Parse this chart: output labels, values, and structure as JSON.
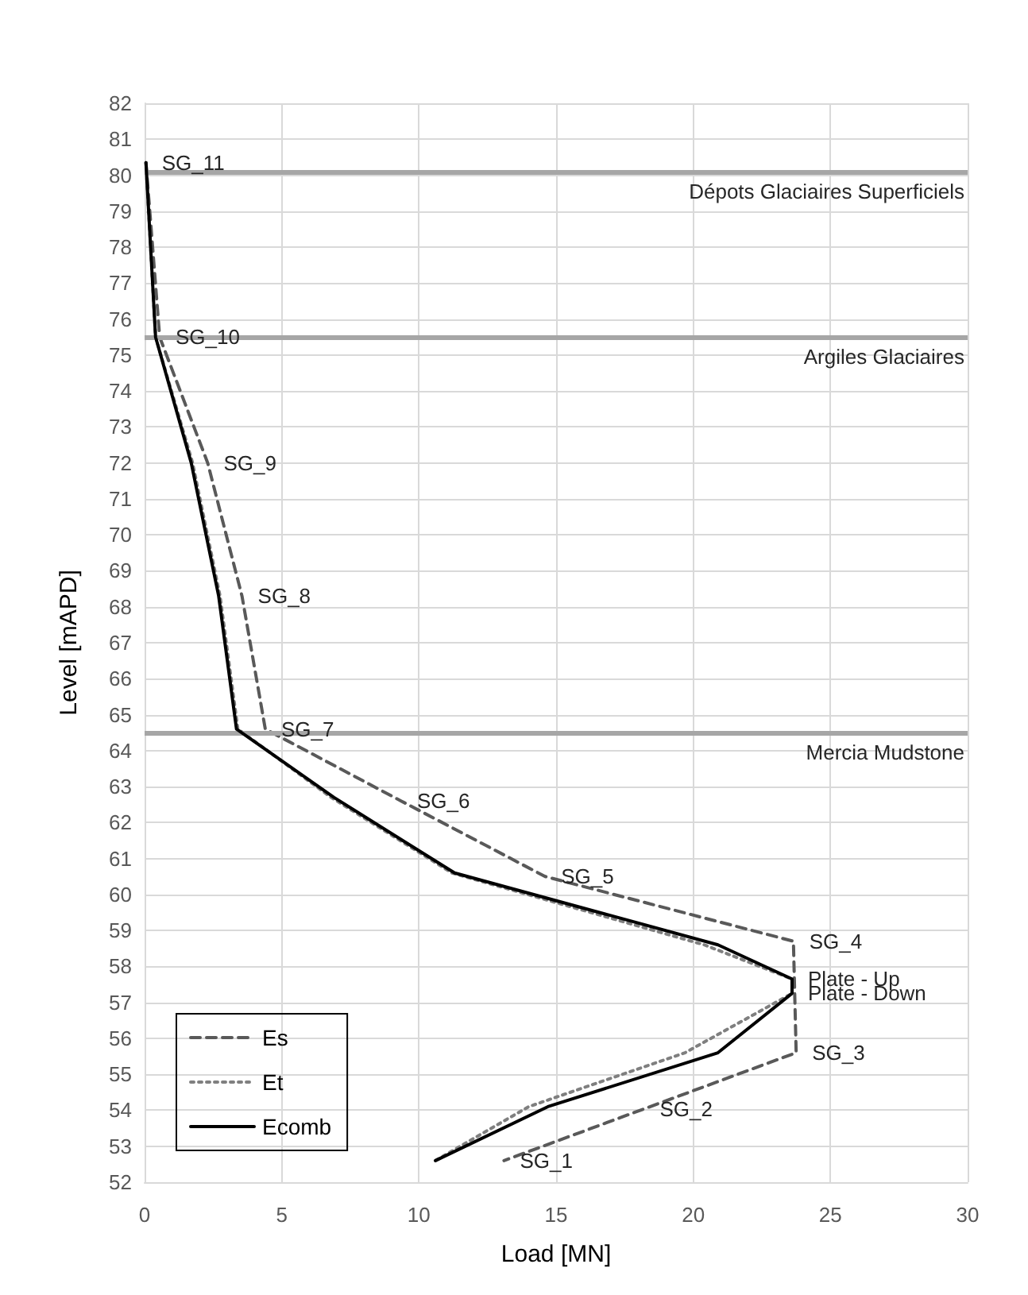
{
  "chart_data": {
    "type": "line",
    "xlabel": "Load [MN]",
    "ylabel": "Level [mAPD]",
    "xlim": [
      0,
      30
    ],
    "xticks": [
      0,
      5,
      10,
      15,
      20,
      25,
      30
    ],
    "ylim": [
      52,
      82
    ],
    "yticks": [
      52,
      53,
      54,
      55,
      56,
      57,
      58,
      59,
      60,
      61,
      62,
      63,
      64,
      65,
      66,
      67,
      68,
      69,
      70,
      71,
      72,
      73,
      74,
      75,
      76,
      77,
      78,
      79,
      80,
      81,
      82
    ],
    "grid": true,
    "legend": "bottom left",
    "marker": "none",
    "series": [
      {
        "name": "Es",
        "color": "#595959",
        "line_style": "dashed",
        "x": [
          0.05,
          0.55,
          2.3,
          3.55,
          4.4,
          9.35,
          14.6,
          23.65,
          23.75,
          13.1
        ],
        "values": [
          80.35,
          75.5,
          72.0,
          68.3,
          64.6,
          62.6,
          60.5,
          58.7,
          55.6,
          52.6
        ]
      },
      {
        "name": "Et",
        "color": "#7f7f7f",
        "line_style": "dotted",
        "x": [
          0.05,
          0.4,
          1.75,
          2.75,
          3.4,
          6.8,
          11.2,
          20.4,
          23.6,
          23.6,
          19.7,
          14.0,
          10.6
        ],
        "values": [
          80.35,
          75.5,
          72.0,
          68.3,
          64.6,
          62.7,
          60.6,
          58.6,
          57.65,
          57.25,
          55.6,
          54.1,
          52.6
        ]
      },
      {
        "name": "Ecomb",
        "color": "#000000",
        "line_style": "solid",
        "x": [
          0.05,
          0.4,
          1.7,
          2.7,
          3.35,
          6.9,
          11.3,
          20.9,
          23.6,
          23.6,
          20.9,
          14.7,
          10.6
        ],
        "values": [
          80.35,
          75.5,
          72.0,
          68.3,
          64.6,
          62.7,
          60.6,
          58.6,
          57.65,
          57.25,
          55.6,
          54.1,
          52.6
        ]
      }
    ],
    "ref_lines": [
      {
        "axis": "y",
        "value": 80.1,
        "label": "Dépots Glaciaires Superficiels",
        "color": "#a6a6a6"
      },
      {
        "axis": "y",
        "value": 75.5,
        "label": "Argiles Glaciaires",
        "color": "#a6a6a6"
      },
      {
        "axis": "y",
        "value": 64.5,
        "label": "Mercia Mudstone",
        "color": "#a6a6a6"
      }
    ],
    "annotations": [
      {
        "text": "SG_11",
        "x": 0.05,
        "y": 80.35
      },
      {
        "text": "SG_10",
        "x": 0.55,
        "y": 75.5
      },
      {
        "text": "SG_9",
        "x": 2.3,
        "y": 72.0
      },
      {
        "text": "SG_8",
        "x": 3.55,
        "y": 68.3
      },
      {
        "text": "SG_7",
        "x": 4.4,
        "y": 64.6
      },
      {
        "text": "SG_6",
        "x": 9.35,
        "y": 62.6
      },
      {
        "text": "SG_5",
        "x": 14.6,
        "y": 60.5
      },
      {
        "text": "SG_4",
        "x": 23.65,
        "y": 58.7
      },
      {
        "text": "Plate - Up",
        "x": 23.6,
        "y": 57.65
      },
      {
        "text": "Plate - Down",
        "x": 23.6,
        "y": 57.25
      },
      {
        "text": "SG_3",
        "x": 23.75,
        "y": 55.6
      },
      {
        "text": "SG_2",
        "x": 18.2,
        "y": 54.04
      },
      {
        "text": "SG_1",
        "x": 13.1,
        "y": 52.6
      }
    ]
  }
}
